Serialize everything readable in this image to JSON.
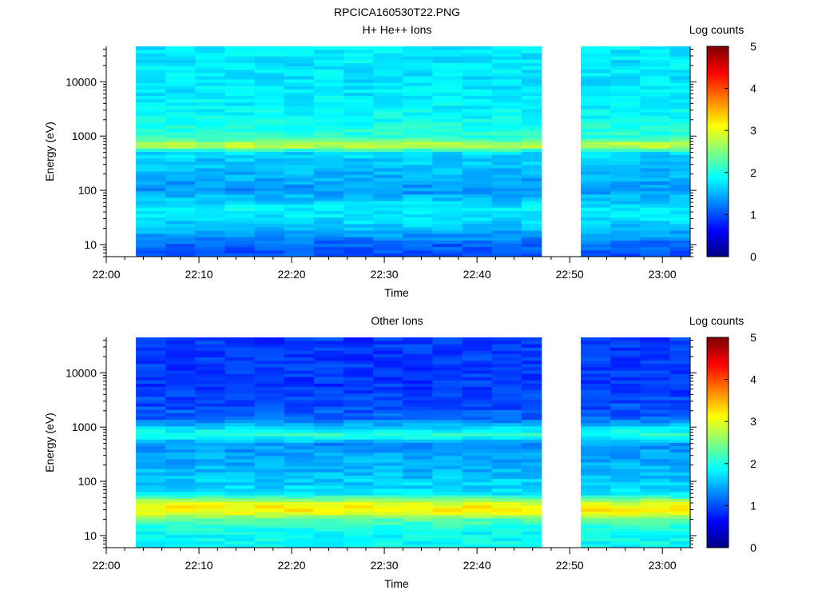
{
  "figure_title": "RPCICA160530T22.PNG",
  "chart_data": [
    {
      "type": "heatmap",
      "title": "H+ He++ Ions",
      "xlabel": "Time",
      "ylabel": "Energy (eV)",
      "x_range": [
        "22:00",
        "23:03"
      ],
      "x_ticks": [
        "22:00",
        "22:10",
        "22:20",
        "22:30",
        "22:40",
        "22:50",
        "23:00"
      ],
      "y_scale": "log",
      "y_range": [
        6,
        45000
      ],
      "y_ticks": [
        {
          "value": 10,
          "label": "10"
        },
        {
          "value": 100,
          "label": "100"
        },
        {
          "value": 1000,
          "label": "1000"
        },
        {
          "value": 10000,
          "label": "10000"
        }
      ],
      "data_gaps": [
        [
          "22:00",
          "22:02"
        ],
        [
          "22:47",
          "22:50"
        ]
      ],
      "colorbar": {
        "label": "Log counts",
        "range": [
          0,
          5
        ],
        "ticks": [
          "0",
          "1",
          "2",
          "3",
          "4",
          "5"
        ]
      },
      "energy_profile": [
        {
          "energy": 7,
          "log_counts": 1.05
        },
        {
          "energy": 10,
          "log_counts": 1.1
        },
        {
          "energy": 15,
          "log_counts": 1.4
        },
        {
          "energy": 30,
          "log_counts": 1.75
        },
        {
          "energy": 45,
          "log_counts": 1.85
        },
        {
          "energy": 100,
          "log_counts": 1.35
        },
        {
          "energy": 300,
          "log_counts": 1.6
        },
        {
          "energy": 500,
          "log_counts": 1.7
        },
        {
          "energy": 680,
          "log_counts": 3.0
        },
        {
          "energy": 900,
          "log_counts": 2.1
        },
        {
          "energy": 3000,
          "log_counts": 1.85
        },
        {
          "energy": 10000,
          "log_counts": 1.75
        },
        {
          "energy": 40000,
          "log_counts": 1.8
        }
      ]
    },
    {
      "type": "heatmap",
      "title": "Other Ions",
      "xlabel": "Time",
      "ylabel": "Energy (eV)",
      "x_range": [
        "22:00",
        "23:03"
      ],
      "x_ticks": [
        "22:00",
        "22:10",
        "22:20",
        "22:30",
        "22:40",
        "22:50",
        "23:00"
      ],
      "y_scale": "log",
      "y_range": [
        6,
        45000
      ],
      "y_ticks": [
        {
          "value": 10,
          "label": "10"
        },
        {
          "value": 100,
          "label": "100"
        },
        {
          "value": 1000,
          "label": "1000"
        },
        {
          "value": 10000,
          "label": "10000"
        }
      ],
      "data_gaps": [
        [
          "22:00",
          "22:02"
        ],
        [
          "22:47",
          "22:50"
        ]
      ],
      "colorbar": {
        "label": "Log counts",
        "range": [
          0,
          5
        ],
        "ticks": [
          "0",
          "1",
          "2",
          "3",
          "4",
          "5"
        ]
      },
      "energy_profile": [
        {
          "energy": 7,
          "log_counts": 1.9
        },
        {
          "energy": 12,
          "log_counts": 1.9
        },
        {
          "energy": 20,
          "log_counts": 2.3
        },
        {
          "energy": 26,
          "log_counts": 3.0
        },
        {
          "energy": 32,
          "log_counts": 3.25
        },
        {
          "energy": 40,
          "log_counts": 2.9
        },
        {
          "energy": 60,
          "log_counts": 1.75
        },
        {
          "energy": 150,
          "log_counts": 1.55
        },
        {
          "energy": 500,
          "log_counts": 1.35
        },
        {
          "energy": 720,
          "log_counts": 2.1
        },
        {
          "energy": 1500,
          "log_counts": 1.1
        },
        {
          "energy": 5000,
          "log_counts": 0.9
        },
        {
          "energy": 40000,
          "log_counts": 0.9
        }
      ]
    }
  ]
}
